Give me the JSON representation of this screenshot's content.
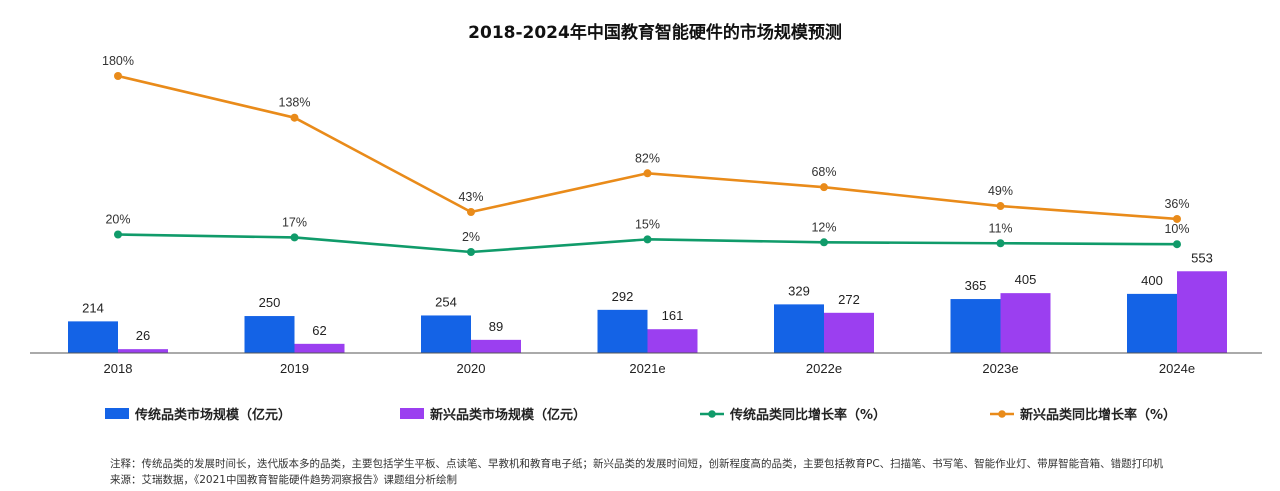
{
  "chart_data": {
    "type": "bar+line",
    "title": "2018-2024年中国教育智能硬件的市场规模预测",
    "categories": [
      "2018",
      "2019",
      "2020",
      "2021e",
      "2022e",
      "2023e",
      "2024e"
    ],
    "bar_series": [
      {
        "name": "传统品类市场规模（亿元）",
        "color": "#1463e6",
        "values": [
          214,
          250,
          254,
          292,
          329,
          365,
          400
        ]
      },
      {
        "name": "新兴品类市场规模（亿元）",
        "color": "#9b3ff0",
        "values": [
          26,
          62,
          89,
          161,
          272,
          405,
          553
        ]
      }
    ],
    "line_series": [
      {
        "name": "传统品类同比增长率（%）",
        "color": "#109b6a",
        "values": [
          20,
          17,
          2,
          15,
          12,
          11,
          10
        ],
        "labels": [
          "20%",
          "17%",
          "2%",
          "15%",
          "12%",
          "11%",
          "10%"
        ]
      },
      {
        "name": "新兴品类同比增长率（%）",
        "color": "#e98b1a",
        "values": [
          180,
          138,
          43,
          82,
          68,
          49,
          36
        ],
        "labels": [
          "180%",
          "138%",
          "43%",
          "82%",
          "68%",
          "49%",
          "36%"
        ]
      }
    ],
    "legend_position": "bottom",
    "grid": false
  },
  "footnote": {
    "note": "注释：传统品类的发展时间长，迭代版本多的品类，主要包括学生平板、点读笔、早教机和教育电子纸；新兴品类的发展时间短，创新程度高的品类，主要包括教育PC、扫描笔、书写笔、智能作业灯、带屏智能音箱、错题打印机",
    "source": "来源：艾瑞数据，《2021中国教育智能硬件趋势洞察报告》课题组分析绘制"
  }
}
